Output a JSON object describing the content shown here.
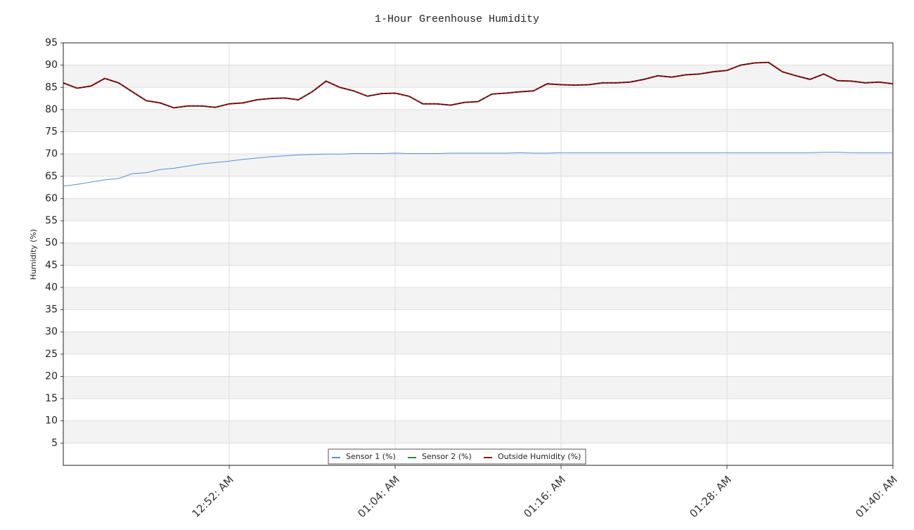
{
  "chart_data": {
    "type": "line",
    "title": "1-Hour Greenhouse Humidity",
    "y_label": "Humidity (%)",
    "x": [
      "12:40 AM",
      "12:41 AM",
      "12:42 AM",
      "12:43 AM",
      "12:44 AM",
      "12:45 AM",
      "12:46 AM",
      "12:47 AM",
      "12:48 AM",
      "12:49 AM",
      "12:50 AM",
      "12:51 AM",
      "12:52 AM",
      "12:53 AM",
      "12:54 AM",
      "12:55 AM",
      "12:56 AM",
      "12:57 AM",
      "12:58 AM",
      "12:59 AM",
      "01:00 AM",
      "01:01 AM",
      "01:02 AM",
      "01:03 AM",
      "01:04 AM",
      "01:05 AM",
      "01:06 AM",
      "01:07 AM",
      "01:08 AM",
      "01:09 AM",
      "01:10 AM",
      "01:11 AM",
      "01:12 AM",
      "01:13 AM",
      "01:14 AM",
      "01:15 AM",
      "01:16 AM",
      "01:17 AM",
      "01:18 AM",
      "01:19 AM",
      "01:20 AM",
      "01:21 AM",
      "01:22 AM",
      "01:23 AM",
      "01:24 AM",
      "01:25 AM",
      "01:26 AM",
      "01:27 AM",
      "01:28 AM",
      "01:29 AM",
      "01:30 AM",
      "01:31 AM",
      "01:32 AM",
      "01:33 AM",
      "01:34 AM",
      "01:35 AM",
      "01:36 AM",
      "01:37 AM",
      "01:38 AM",
      "01:39 AM",
      "01:40 AM"
    ],
    "series": [
      {
        "name": "Sensor 1 (%)",
        "color": "#5b8fd9",
        "values": [
          62.8,
          63.2,
          63.7,
          64.2,
          64.5,
          65.6,
          65.8,
          66.5,
          66.8,
          67.3,
          67.8,
          68.1,
          68.4,
          68.8,
          69.1,
          69.4,
          69.6,
          69.8,
          69.9,
          70,
          70,
          70.1,
          70.1,
          70.1,
          70.2,
          70.1,
          70.1,
          70.1,
          70.2,
          70.2,
          70.2,
          70.2,
          70.2,
          70.3,
          70.2,
          70.2,
          70.3,
          70.3,
          70.3,
          70.3,
          70.3,
          70.3,
          70.3,
          70.3,
          70.3,
          70.3,
          70.3,
          70.3,
          70.3,
          70.3,
          70.3,
          70.3,
          70.3,
          70.3,
          70.3,
          70.4,
          70.4,
          70.3,
          70.3,
          70.3,
          70.3
        ]
      },
      {
        "name": "Sensor 2 (%)",
        "color": "#2e8b3a",
        "values": [
          null,
          null,
          null,
          null,
          null,
          null,
          null,
          null,
          null,
          null,
          null,
          null,
          null,
          null,
          null,
          null,
          null,
          null,
          null,
          null,
          null,
          null,
          null,
          null,
          null,
          null,
          null,
          null,
          null,
          null,
          null,
          null,
          null,
          null,
          null,
          null,
          null,
          null,
          null,
          null,
          null,
          null,
          null,
          null,
          null,
          null,
          null,
          null,
          null,
          null,
          null,
          null,
          null,
          null,
          null,
          null,
          null,
          null,
          null,
          null,
          null
        ]
      },
      {
        "name": "Outside Humidity (%)",
        "color": "#9b1010",
        "values": [
          86,
          84.8,
          85.3,
          87,
          86,
          84,
          82,
          81.5,
          80.4,
          80.8,
          80.8,
          80.5,
          81.3,
          81.5,
          82.2,
          82.5,
          82.6,
          82.2,
          84,
          86.4,
          85,
          84.2,
          83,
          83.6,
          83.7,
          83,
          81.3,
          81.3,
          81,
          81.6,
          81.8,
          83.5,
          83.7,
          84,
          84.2,
          85.8,
          85.6,
          85.5,
          85.6,
          86,
          86,
          86.2,
          86.8,
          87.6,
          87.3,
          87.8,
          88,
          88.5,
          88.8,
          90,
          90.5,
          90.6,
          88.5,
          87.6,
          86.8,
          88,
          86.5,
          86.4,
          86,
          86.2,
          85.8
        ]
      }
    ],
    "xlim": [
      "12:40 AM",
      "01:40 AM"
    ],
    "xticks": [
      {
        "value": "12:52 AM",
        "label": "12:52: AM"
      },
      {
        "value": "01:04 AM",
        "label": "01:04: AM"
      },
      {
        "value": "01:16 AM",
        "label": "01:16: AM"
      },
      {
        "value": "01:28 AM",
        "label": "01:28: AM"
      },
      {
        "value": "01:40 AM",
        "label": "01:40: AM"
      }
    ],
    "ylim": [
      0,
      95
    ],
    "yticks": [
      5,
      10,
      15,
      20,
      25,
      30,
      35,
      40,
      45,
      50,
      55,
      60,
      65,
      70,
      75,
      80,
      85,
      90,
      95
    ],
    "grid": true
  }
}
